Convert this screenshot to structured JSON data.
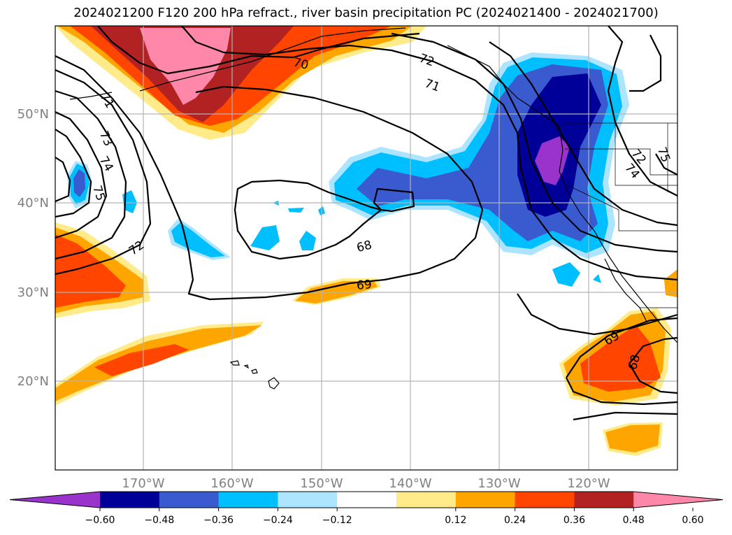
{
  "title": "2024021200 F120 200 hPa refract., river basin precipitation PC (2024021400 - 2024021700)",
  "map": {
    "lat_labels": [
      "50°N",
      "40°N",
      "30°N",
      "20°N"
    ],
    "lon_labels": [
      "170°W",
      "160°W",
      "150°W",
      "140°W",
      "130°W",
      "120°W"
    ],
    "contour_labels": [
      "70",
      "72",
      "71",
      "71",
      "73",
      "74",
      "75",
      "72",
      "68",
      "69",
      "72",
      "74",
      "75",
      "69",
      "68"
    ]
  },
  "colorbar": {
    "colors": [
      "#9933cc",
      "#000099",
      "#3a5bd0",
      "#00bfff",
      "#ade4ff",
      "#ffffff",
      "#ffeb8a",
      "#ffa500",
      "#ff4500",
      "#b22222",
      "#ff88aa"
    ],
    "ticks": [
      "−0.60",
      "−0.48",
      "−0.36",
      "−0.24",
      "−0.12",
      "0.12",
      "0.24",
      "0.36",
      "0.48",
      "0.60"
    ]
  }
}
